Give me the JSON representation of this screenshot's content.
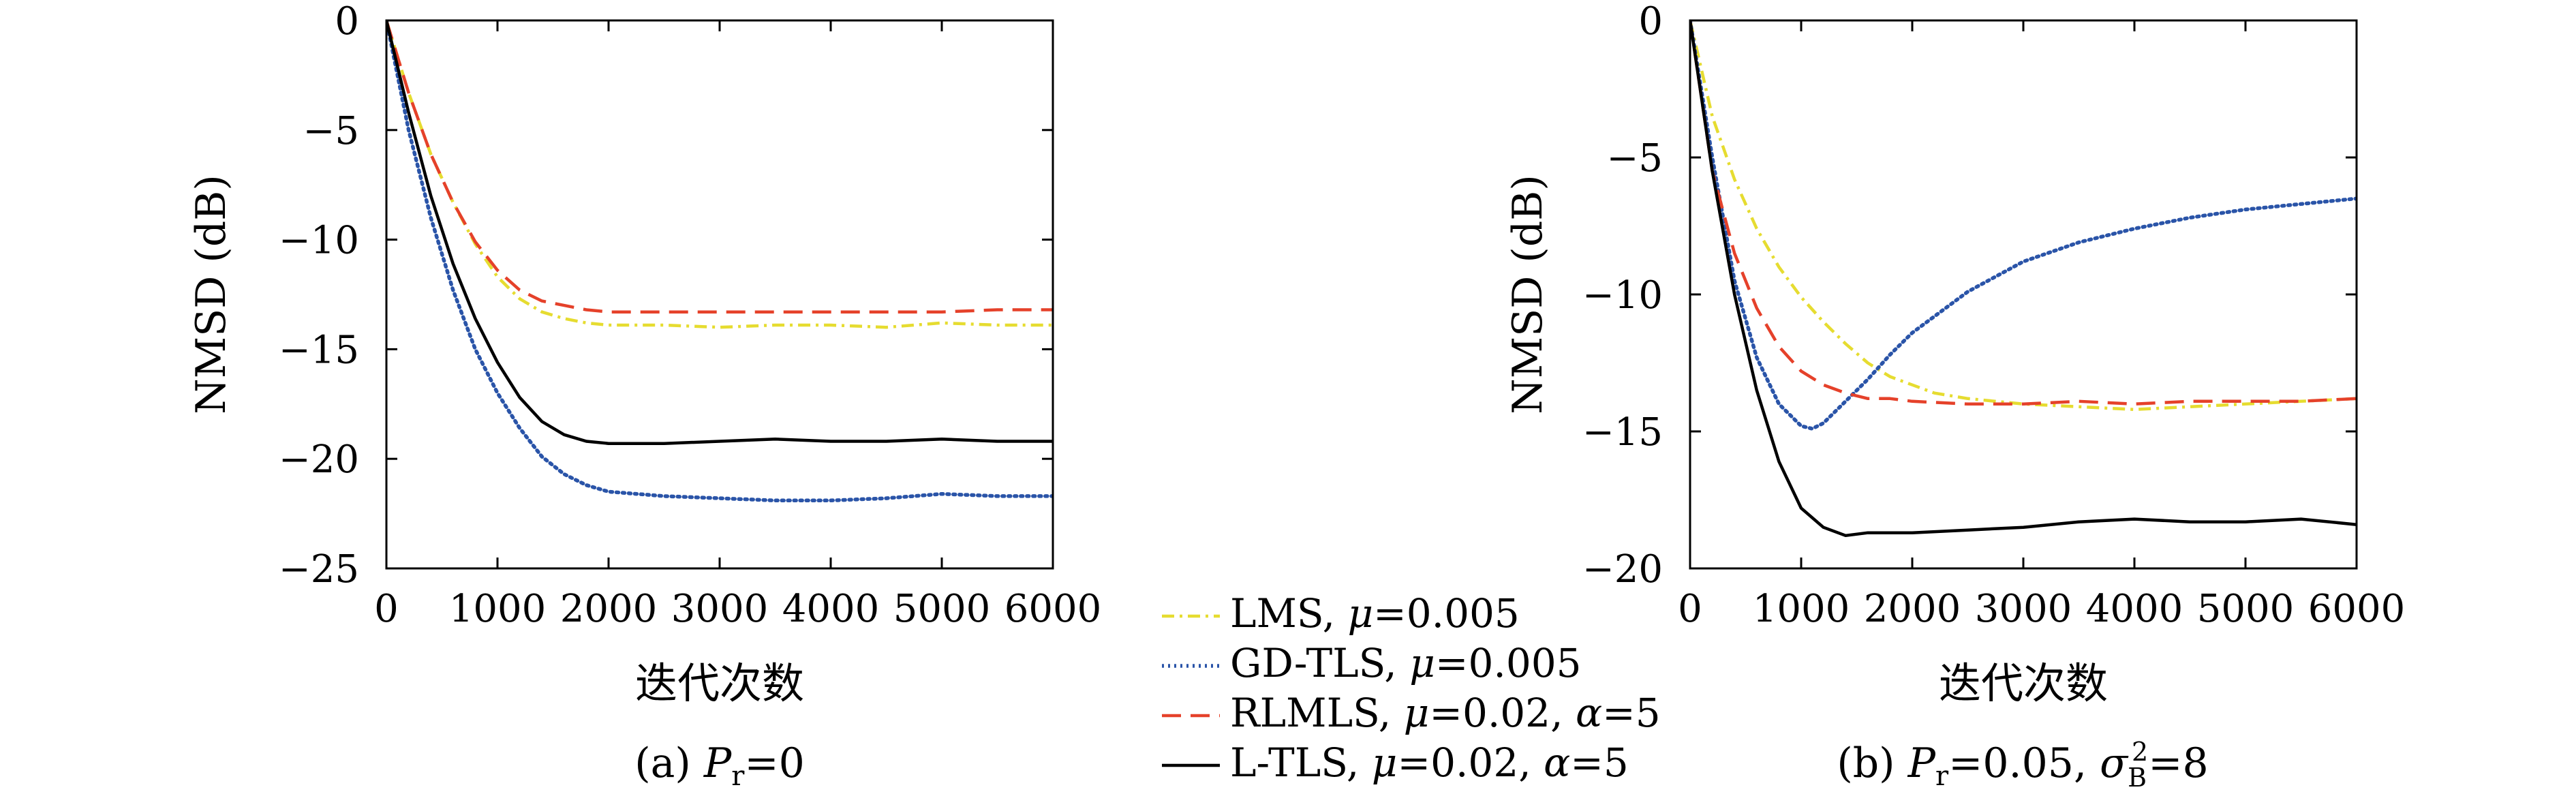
{
  "chart_data": [
    {
      "type": "line",
      "caption": "(a) Pr=0",
      "caption_parts": {
        "prefix": "(a) ",
        "var": "P",
        "sub": "r",
        "suffix": "=0"
      },
      "xlabel": "迭代次数",
      "ylabel": "NMSD (dB)",
      "xlim": [
        0,
        6000
      ],
      "ylim": [
        -25,
        0
      ],
      "xticks": [
        0,
        1000,
        2000,
        3000,
        4000,
        5000,
        6000
      ],
      "yticks": [
        0,
        -5,
        -10,
        -15,
        -20,
        -25
      ],
      "ytick_labels": [
        "0",
        "−5",
        "−10",
        "−15",
        "−20",
        "−25"
      ],
      "grid": false,
      "series": [
        {
          "name": "LMS, μ=0.005",
          "color": "#e6dc30",
          "dash": "dashdot",
          "x": [
            0,
            200,
            400,
            600,
            800,
            1000,
            1200,
            1400,
            1600,
            1800,
            2000,
            2500,
            3000,
            3500,
            4000,
            4500,
            5000,
            5500,
            6000
          ],
          "y": [
            0,
            -3.3,
            -6.1,
            -8.3,
            -10.2,
            -11.7,
            -12.7,
            -13.3,
            -13.6,
            -13.8,
            -13.9,
            -13.9,
            -14.0,
            -13.9,
            -13.9,
            -14.0,
            -13.8,
            -13.9,
            -13.9
          ]
        },
        {
          "name": "GD-TLS, μ=0.005",
          "color": "#2a54a8",
          "dash": "dotted",
          "x": [
            0,
            200,
            400,
            600,
            800,
            1000,
            1200,
            1400,
            1600,
            1800,
            2000,
            2500,
            3000,
            3500,
            4000,
            4500,
            5000,
            5500,
            6000
          ],
          "y": [
            0,
            -5.0,
            -9.0,
            -12.3,
            -15.0,
            -17.0,
            -18.6,
            -19.9,
            -20.7,
            -21.2,
            -21.5,
            -21.7,
            -21.8,
            -21.9,
            -21.9,
            -21.8,
            -21.6,
            -21.7,
            -21.7
          ]
        },
        {
          "name": "RLMLS, μ=0.02, α=5",
          "color": "#e5412a",
          "dash": "dashed",
          "x": [
            0,
            200,
            400,
            600,
            800,
            1000,
            1200,
            1400,
            1600,
            1800,
            2000,
            2500,
            3000,
            3500,
            4000,
            4500,
            5000,
            5500,
            6000
          ],
          "y": [
            0,
            -3.3,
            -6.1,
            -8.3,
            -10.1,
            -11.4,
            -12.3,
            -12.8,
            -13.0,
            -13.2,
            -13.3,
            -13.3,
            -13.3,
            -13.3,
            -13.3,
            -13.3,
            -13.3,
            -13.2,
            -13.2
          ]
        },
        {
          "name": "L-TLS, μ=0.02, α=5",
          "color": "#000000",
          "dash": "solid",
          "x": [
            0,
            200,
            400,
            600,
            800,
            1000,
            1200,
            1400,
            1600,
            1800,
            2000,
            2500,
            3000,
            3500,
            4000,
            4500,
            5000,
            5500,
            6000
          ],
          "y": [
            0,
            -4.2,
            -8.0,
            -11.1,
            -13.6,
            -15.6,
            -17.2,
            -18.3,
            -18.9,
            -19.2,
            -19.3,
            -19.3,
            -19.2,
            -19.1,
            -19.2,
            -19.2,
            -19.1,
            -19.2,
            -19.2
          ]
        }
      ]
    },
    {
      "type": "line",
      "caption": "(b) Pr=0.05, σB²=8",
      "caption_parts": {
        "prefix": "(b) ",
        "var": "P",
        "sub": "r",
        "mid": "=0.05, ",
        "var2": "σ",
        "sub2": "B",
        "sup2": "2",
        "suffix": "=8"
      },
      "xlabel": "迭代次数",
      "ylabel": "NMSD (dB)",
      "xlim": [
        0,
        6000
      ],
      "ylim": [
        -20,
        0
      ],
      "xticks": [
        0,
        1000,
        2000,
        3000,
        4000,
        5000,
        6000
      ],
      "yticks": [
        0,
        -5,
        -10,
        -15,
        -20
      ],
      "ytick_labels": [
        "0",
        "−5",
        "−10",
        "−15",
        "−20"
      ],
      "grid": false,
      "series": [
        {
          "name": "LMS, μ=0.005",
          "color": "#e6dc30",
          "dash": "dashdot",
          "x": [
            0,
            200,
            400,
            600,
            800,
            1000,
            1200,
            1400,
            1600,
            1800,
            2000,
            2200,
            2500,
            3000,
            3500,
            4000,
            4500,
            5000,
            5500,
            6000
          ],
          "y": [
            0,
            -3.5,
            -5.8,
            -7.6,
            -9.0,
            -10.1,
            -11.0,
            -11.8,
            -12.5,
            -13.0,
            -13.3,
            -13.6,
            -13.8,
            -14.0,
            -14.1,
            -14.2,
            -14.1,
            -14.0,
            -13.9,
            -13.8
          ]
        },
        {
          "name": "GD-TLS, μ=0.005",
          "color": "#2a54a8",
          "dash": "dotted",
          "x": [
            0,
            200,
            400,
            600,
            800,
            1000,
            1100,
            1200,
            1400,
            1600,
            1800,
            2000,
            2500,
            3000,
            3500,
            4000,
            4500,
            5000,
            5500,
            6000
          ],
          "y": [
            0,
            -5.0,
            -9.5,
            -12.3,
            -14.0,
            -14.8,
            -14.9,
            -14.7,
            -13.9,
            -13.1,
            -12.2,
            -11.4,
            -9.9,
            -8.8,
            -8.1,
            -7.6,
            -7.2,
            -6.9,
            -6.7,
            -6.5
          ]
        },
        {
          "name": "RLMLS, μ=0.02, α=5",
          "color": "#e5412a",
          "dash": "dashed",
          "x": [
            0,
            200,
            400,
            600,
            800,
            1000,
            1200,
            1400,
            1600,
            1800,
            2000,
            2500,
            3000,
            3500,
            4000,
            4500,
            5000,
            5500,
            6000
          ],
          "y": [
            0,
            -5.5,
            -8.5,
            -10.5,
            -11.9,
            -12.8,
            -13.3,
            -13.6,
            -13.8,
            -13.8,
            -13.9,
            -14.0,
            -14.0,
            -13.9,
            -14.0,
            -13.9,
            -13.9,
            -13.9,
            -13.8
          ]
        },
        {
          "name": "L-TLS, μ=0.02, α=5",
          "color": "#000000",
          "dash": "solid",
          "x": [
            0,
            200,
            400,
            600,
            800,
            1000,
            1200,
            1400,
            1600,
            2000,
            2500,
            3000,
            3500,
            4000,
            4500,
            5000,
            5500,
            6000
          ],
          "y": [
            0,
            -5.5,
            -10.0,
            -13.5,
            -16.1,
            -17.8,
            -18.5,
            -18.8,
            -18.7,
            -18.7,
            -18.6,
            -18.5,
            -18.3,
            -18.2,
            -18.3,
            -18.3,
            -18.2,
            -18.4
          ]
        }
      ]
    }
  ],
  "legend": {
    "placement": "between-panels-bottom",
    "entries": [
      {
        "label": "LMS, ",
        "var": "μ",
        "rest": "=0.005"
      },
      {
        "label": "GD-TLS, ",
        "var": "μ",
        "rest": "=0.005"
      },
      {
        "label": "RLMLS, ",
        "var": "μ",
        "rest": "=0.02, ",
        "var2": "α",
        "rest2": "=5"
      },
      {
        "label": "L-TLS, ",
        "var": "μ",
        "rest": "=0.02, ",
        "var2": "α",
        "rest2": "=5"
      }
    ]
  }
}
